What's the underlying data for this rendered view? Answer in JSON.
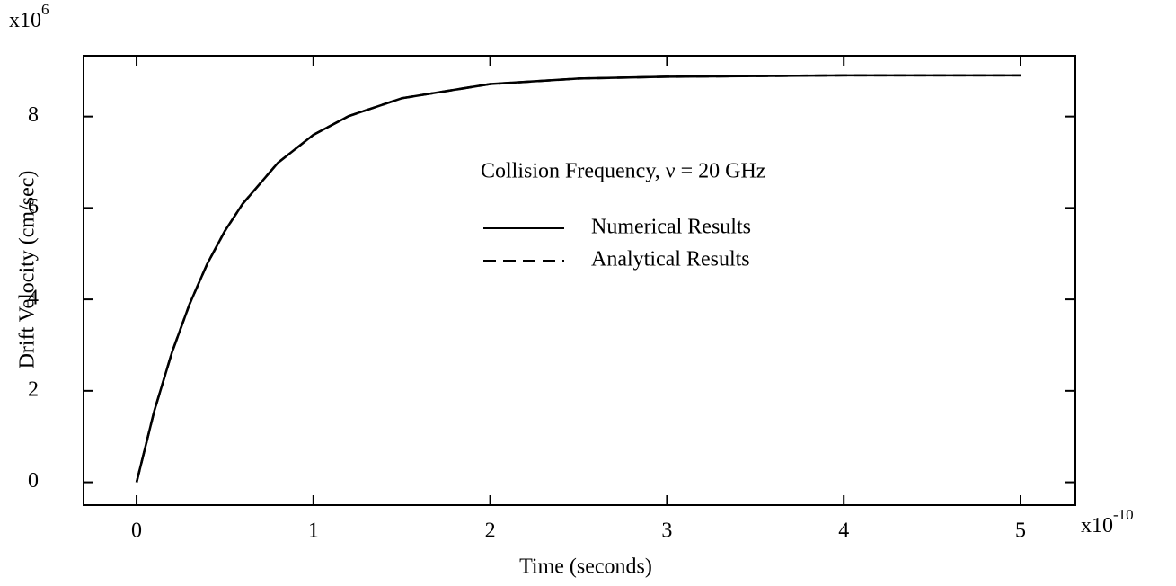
{
  "chart_data": {
    "type": "line",
    "xlabel": "Time  (seconds)",
    "ylabel": "Drift Velocity  (cm/sec)",
    "x_multiplier": {
      "base": "x10",
      "exponent": "-10"
    },
    "y_multiplier": {
      "base": "x10",
      "exponent": "6"
    },
    "annotation": "Collision Frequency, ν = 20 GHz",
    "legend": "right",
    "x": [
      0,
      0.1,
      0.2,
      0.3,
      0.4,
      0.5,
      0.6,
      0.8,
      1.0,
      1.2,
      1.5,
      2.0,
      2.5,
      3.0,
      4.0,
      5.0
    ],
    "series": [
      {
        "name": "Numerical Results",
        "color": "#000000",
        "dash": "solid",
        "values": [
          0,
          1.56,
          2.84,
          3.9,
          4.78,
          5.5,
          6.09,
          6.99,
          7.6,
          8.01,
          8.4,
          8.71,
          8.83,
          8.87,
          8.9,
          8.9
        ]
      },
      {
        "name": "Analytical Results",
        "color": "#000000",
        "dash": "dashed",
        "values": [
          0,
          1.56,
          2.84,
          3.9,
          4.78,
          5.5,
          6.09,
          6.99,
          7.6,
          8.01,
          8.4,
          8.71,
          8.83,
          8.87,
          8.9,
          8.9
        ]
      }
    ],
    "xlim": [
      -0.3,
      5.31
    ],
    "ylim": [
      -0.5,
      9.33
    ],
    "xticks": [
      0,
      1,
      2,
      3,
      4,
      5
    ],
    "yticks": [
      0,
      2,
      4,
      6,
      8
    ],
    "grid": false
  }
}
